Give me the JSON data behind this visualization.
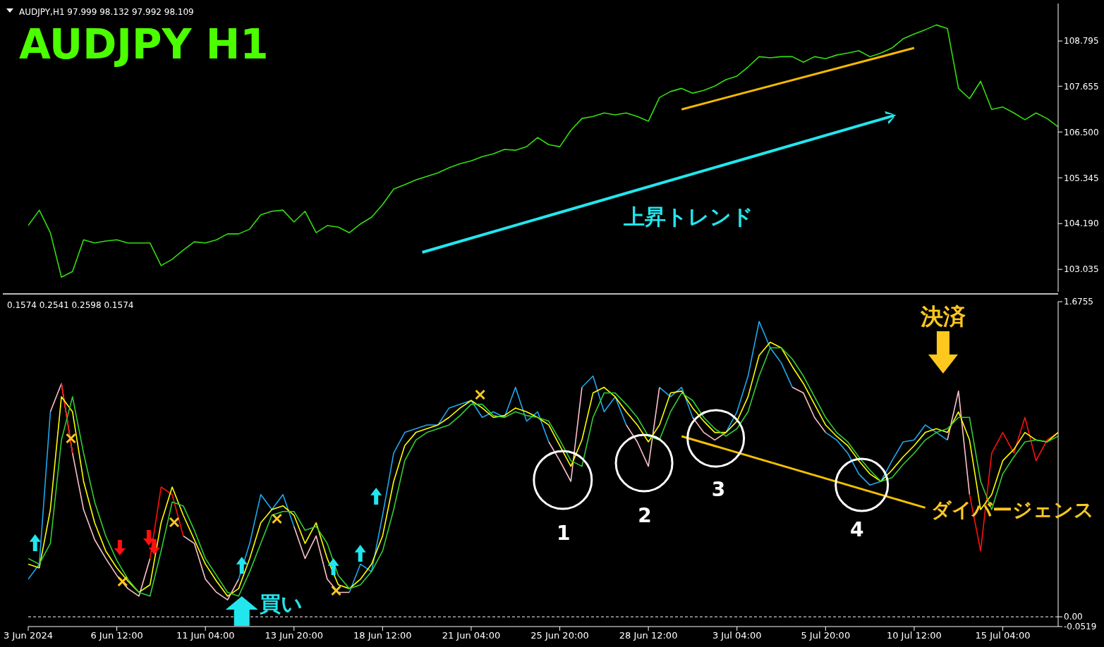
{
  "chart_data": [
    {
      "type": "line",
      "title": "AUDJPY  H1",
      "categories": [
        null,
        null,
        null,
        null,
        null,
        null,
        null,
        null,
        null,
        null,
        null,
        null,
        null,
        null,
        null,
        null,
        null,
        null,
        null,
        null,
        null,
        null,
        null,
        null,
        null,
        null,
        null,
        null,
        null,
        null,
        null,
        null,
        null,
        null,
        null,
        null,
        null,
        null,
        null,
        null,
        null,
        null,
        null,
        null,
        null,
        null,
        null,
        null,
        null,
        null,
        null,
        null,
        null,
        null,
        null,
        null,
        null,
        null,
        null,
        null,
        null,
        null,
        null,
        null,
        null,
        null,
        null,
        null,
        null,
        null,
        null,
        null,
        null,
        null,
        null,
        null,
        null,
        null,
        null,
        null,
        null,
        null,
        null,
        null,
        null,
        null,
        null,
        null,
        null,
        null,
        null,
        null,
        null,
        null
      ],
      "series": [
        {
          "color": "#33dd11",
          "values": [
            104.14,
            104.53,
            103.96,
            102.84,
            102.98,
            103.78,
            103.7,
            103.75,
            103.78,
            103.7,
            103.7,
            103.7,
            103.13,
            103.29,
            103.52,
            103.73,
            103.7,
            103.78,
            103.93,
            103.93,
            104.05,
            104.41,
            104.5,
            104.53,
            104.23,
            104.5,
            103.96,
            104.14,
            104.1,
            103.96,
            104.18,
            104.35,
            104.67,
            105.06,
            105.17,
            105.29,
            105.38,
            105.47,
            105.6,
            105.7,
            105.77,
            105.88,
            105.95,
            106.06,
            106.04,
            106.13,
            106.36,
            106.18,
            106.13,
            106.54,
            106.84,
            106.89,
            106.98,
            106.93,
            106.98,
            106.89,
            106.77,
            107.37,
            107.52,
            107.6,
            107.48,
            107.55,
            107.66,
            107.82,
            107.91,
            108.14,
            108.4,
            108.37,
            108.4,
            108.4,
            108.26,
            108.4,
            108.35,
            108.44,
            108.49,
            108.55,
            108.4,
            108.49,
            108.62,
            108.85,
            108.97,
            109.08,
            109.2,
            109.11,
            107.6,
            107.34,
            107.78,
            107.07,
            107.13,
            106.98,
            106.81,
            106.98,
            106.84,
            106.63
          ]
        },
        {
          "type": "line",
          "color": "#f5b800",
          "values": [
            null,
            null,
            null,
            null,
            null,
            null,
            null,
            null,
            null,
            null,
            null,
            null,
            null,
            null,
            null,
            null,
            null,
            null,
            null,
            null,
            null,
            null,
            null,
            null,
            null,
            null,
            null,
            null,
            null,
            null,
            null,
            null,
            null,
            null,
            null,
            null,
            null,
            null,
            null,
            null,
            null,
            null,
            null,
            null,
            null,
            null,
            null,
            null,
            null,
            null,
            null,
            null,
            null,
            null,
            null,
            null,
            null,
            null,
            null,
            107.07,
            null,
            null,
            null,
            null,
            null,
            null,
            null,
            null,
            null,
            null,
            null,
            null,
            null,
            null,
            null,
            null,
            null,
            null,
            null,
            null,
            108.62,
            null,
            null,
            null,
            null,
            null,
            null,
            null,
            null,
            null,
            null,
            null,
            null,
            null
          ]
        }
      ],
      "ylim": [
        102.47,
        109.74
      ],
      "yticks": [
        108.795,
        107.655,
        {
          "value": 106.5,
          "label": "106.500"
        },
        105.345,
        {
          "value": 104.19,
          "label": "104.190"
        },
        103.035
      ],
      "tick_labels": "y",
      "annotations": [
        "AUDJPY,H1  97.999 98.132 97.992 98.109",
        "上昇トレンド"
      ]
    },
    {
      "type": "line",
      "categories": [
        "3 Jun 2024",
        null,
        null,
        null,
        null,
        null,
        null,
        null,
        "6 Jun 12:00",
        null,
        null,
        null,
        null,
        null,
        null,
        null,
        "11 Jun 04:00",
        null,
        null,
        null,
        null,
        null,
        null,
        null,
        "13 Jun 20:00",
        null,
        null,
        null,
        null,
        null,
        null,
        null,
        "18 Jun 12:00",
        null,
        null,
        null,
        null,
        null,
        null,
        null,
        "21 Jun 04:00",
        null,
        null,
        null,
        null,
        null,
        null,
        null,
        "25 Jun 20:00",
        null,
        null,
        null,
        null,
        null,
        null,
        null,
        "28 Jun 12:00",
        null,
        null,
        null,
        null,
        null,
        null,
        null,
        "3 Jul 04:00",
        null,
        null,
        null,
        null,
        null,
        null,
        null,
        "5 Jul 20:00",
        null,
        null,
        null,
        null,
        null,
        null,
        null,
        "10 Jul 12:00",
        null,
        null,
        null,
        null,
        null,
        null,
        null,
        "15 Jul 04:00",
        null,
        null,
        null,
        null,
        null
      ],
      "series": [
        {
          "color": "#1ea8f0",
          "values": [
            0.2,
            0.28,
            1.09,
            null,
            null,
            null,
            null,
            null,
            null,
            null,
            null,
            null,
            null,
            null,
            null,
            null,
            null,
            null,
            null,
            0.2,
            0.39,
            0.65,
            0.57,
            0.65,
            0.48,
            null,
            null,
            null,
            null,
            0.13,
            0.28,
            0.24,
            0.54,
            0.87,
            0.98,
            1.0,
            1.02,
            1.02,
            1.11,
            1.13,
            1.15,
            1.06,
            1.09,
            1.06,
            1.22,
            1.04,
            1.09,
            0.93,
            null,
            null,
            1.22,
            1.28,
            1.09,
            1.17,
            1.02,
            null,
            null,
            1.22,
            1.17,
            1.22,
            1.06,
            null,
            null,
            0.98,
            1.09,
            1.28,
            1.57,
            1.43,
            1.35,
            1.22,
            null,
            null,
            0.98,
            0.94,
            0.87,
            0.76,
            0.7,
            0.72,
            0.83,
            0.93,
            0.94,
            1.02,
            0.98,
            0.94,
            null,
            null,
            null,
            null,
            null,
            null,
            null,
            null,
            null,
            null
          ]
        },
        {
          "color": "#ffc0cb",
          "values": [
            null,
            null,
            1.09,
            1.24,
            0.87,
            0.57,
            0.41,
            0.31,
            0.22,
            0.15,
            0.11,
            0.31,
            null,
            null,
            0.43,
            0.39,
            0.2,
            0.13,
            0.09,
            0.2,
            null,
            null,
            null,
            null,
            0.48,
            0.31,
            0.43,
            0.2,
            0.13,
            0.13,
            null,
            null,
            null,
            null,
            null,
            null,
            null,
            null,
            null,
            null,
            null,
            null,
            null,
            null,
            null,
            null,
            null,
            0.93,
            0.83,
            0.72,
            1.22,
            null,
            null,
            null,
            1.02,
            0.93,
            0.8,
            1.22,
            null,
            null,
            1.06,
            0.98,
            0.94,
            0.98,
            null,
            null,
            null,
            null,
            null,
            1.22,
            1.19,
            1.06,
            0.98,
            null,
            null,
            null,
            null,
            null,
            null,
            null,
            null,
            null,
            null,
            0.94,
            1.2,
            0.65,
            null,
            null,
            null,
            null,
            null,
            null,
            null,
            null
          ]
        },
        {
          "color": "#ff1010",
          "values": [
            null,
            null,
            null,
            1.24,
            0.87,
            null,
            null,
            null,
            null,
            null,
            null,
            0.31,
            0.69,
            0.65,
            0.43,
            null,
            null,
            null,
            null,
            null,
            null,
            null,
            null,
            null,
            null,
            null,
            null,
            null,
            null,
            null,
            null,
            null,
            null,
            null,
            null,
            null,
            null,
            null,
            null,
            null,
            null,
            null,
            null,
            null,
            null,
            null,
            null,
            null,
            null,
            null,
            null,
            null,
            null,
            null,
            null,
            null,
            null,
            null,
            null,
            null,
            null,
            null,
            null,
            null,
            null,
            null,
            null,
            null,
            null,
            null,
            null,
            null,
            null,
            null,
            null,
            null,
            null,
            null,
            null,
            null,
            null,
            null,
            null,
            null,
            null,
            0.65,
            0.35,
            0.87,
            0.98,
            0.87,
            1.06,
            0.83,
            0.94,
            0.98
          ]
        },
        {
          "color": "#ffff00",
          "values": [
            0.28,
            0.26,
            0.57,
            1.17,
            1.09,
            0.72,
            0.5,
            0.35,
            0.26,
            0.19,
            0.13,
            0.17,
            0.5,
            0.69,
            0.54,
            0.41,
            0.28,
            0.19,
            0.11,
            0.15,
            0.31,
            0.5,
            0.57,
            0.59,
            0.54,
            0.39,
            0.5,
            0.31,
            0.17,
            0.15,
            0.2,
            0.28,
            0.43,
            0.72,
            0.91,
            0.98,
            1.0,
            1.02,
            1.06,
            1.11,
            1.15,
            1.11,
            1.06,
            1.07,
            1.11,
            1.09,
            1.06,
            1.02,
            0.91,
            0.8,
            0.94,
            1.19,
            1.22,
            1.17,
            1.09,
            1.02,
            0.93,
            1.02,
            1.19,
            1.2,
            1.11,
            1.04,
            0.98,
            0.98,
            1.04,
            1.17,
            1.39,
            1.46,
            1.43,
            1.33,
            1.24,
            1.13,
            1.02,
            0.96,
            0.91,
            0.83,
            0.76,
            0.72,
            0.78,
            0.85,
            0.91,
            0.98,
            1.0,
            0.98,
            1.09,
            0.94,
            0.57,
            0.65,
            0.83,
            0.89,
            0.98,
            0.94,
            0.93,
            0.98
          ]
        },
        {
          "color": "#33cc33",
          "values": [
            0.31,
            0.28,
            0.39,
            0.94,
            1.17,
            0.87,
            0.61,
            0.43,
            0.3,
            0.2,
            0.13,
            0.11,
            0.35,
            0.61,
            0.59,
            0.46,
            0.31,
            0.22,
            0.13,
            0.11,
            0.24,
            0.39,
            0.54,
            0.56,
            0.56,
            0.46,
            0.48,
            0.39,
            0.22,
            0.15,
            0.17,
            0.24,
            0.35,
            0.57,
            0.83,
            0.94,
            0.98,
            1.0,
            1.02,
            1.07,
            1.13,
            1.13,
            1.07,
            1.06,
            1.09,
            1.07,
            1.06,
            1.04,
            0.94,
            0.83,
            0.8,
            1.06,
            1.19,
            1.19,
            1.13,
            1.06,
            0.96,
            0.94,
            1.09,
            1.19,
            1.15,
            1.06,
            1.0,
            0.96,
            1.0,
            1.09,
            1.28,
            1.43,
            1.43,
            1.37,
            1.28,
            1.17,
            1.06,
            0.98,
            0.93,
            0.85,
            0.78,
            0.72,
            0.74,
            0.81,
            0.87,
            0.94,
            0.98,
            1.0,
            1.06,
            1.06,
            0.72,
            0.57,
            0.76,
            0.85,
            0.93,
            0.94,
            0.93,
            0.96
          ]
        },
        {
          "type": "line",
          "color": "#f5c000",
          "values": [
            null,
            null,
            null,
            null,
            null,
            null,
            null,
            null,
            null,
            null,
            null,
            null,
            null,
            null,
            null,
            null,
            null,
            null,
            null,
            null,
            null,
            null,
            null,
            null,
            null,
            null,
            null,
            null,
            null,
            null,
            null,
            null,
            null,
            null,
            null,
            null,
            null,
            null,
            null,
            null,
            null,
            null,
            null,
            null,
            null,
            null,
            null,
            null,
            null,
            null,
            null,
            null,
            null,
            null,
            null,
            null,
            null,
            null,
            null,
            0.96,
            null,
            null,
            null,
            null,
            null,
            null,
            null,
            null,
            null,
            null,
            null,
            null,
            null,
            null,
            null,
            null,
            null,
            null,
            null,
            null,
            null,
            0.58,
            null,
            null,
            null,
            null,
            null,
            null,
            null,
            null,
            null,
            null,
            null,
            null
          ]
        }
      ],
      "ylim": [
        -0.0519,
        1.6755
      ],
      "yticks": [
        1.6755,
        {
          "value": 0,
          "label": "0.00"
        },
        -0.0519
      ],
      "ref_lines": [
        {
          "axis": "y",
          "value": 0,
          "color": "#ffffff",
          "line_style": "dashed"
        }
      ],
      "annotations": [
        "0.1574 0.2541 0.2598 0.1574",
        "決済",
        "買い",
        "1",
        "2",
        "3",
        "4",
        "ダイバージェンス"
      ]
    }
  ]
}
